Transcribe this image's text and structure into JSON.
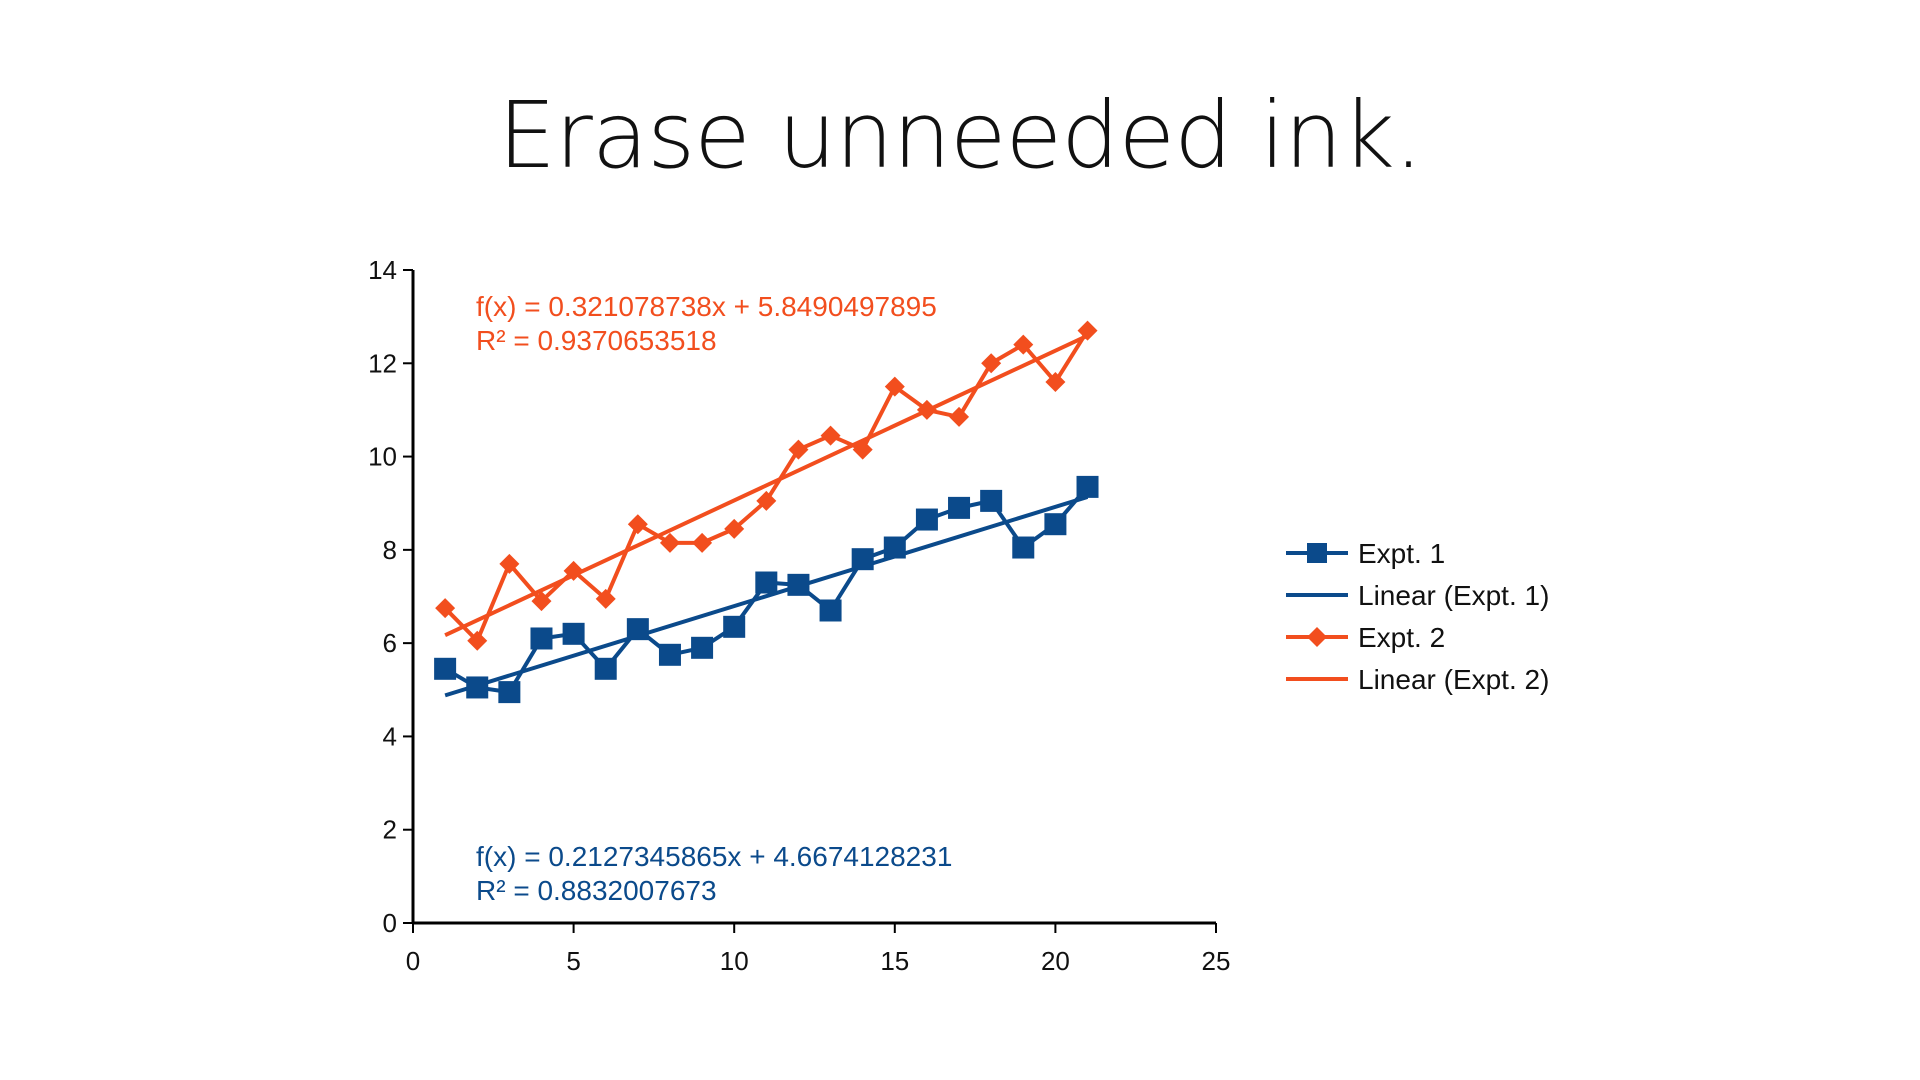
{
  "slide": {
    "title": "Erase unneeded ink."
  },
  "chart_data": {
    "type": "scatter",
    "title": "",
    "xlabel": "",
    "ylabel": "",
    "xlim": [
      0,
      25
    ],
    "ylim": [
      0,
      14
    ],
    "xticks": [
      0,
      5,
      10,
      15,
      20,
      25
    ],
    "yticks": [
      0,
      2,
      4,
      6,
      8,
      10,
      12,
      14
    ],
    "grid": false,
    "legend_position": "right",
    "series": [
      {
        "name": "Expt. 1",
        "color": "#0b4a8b",
        "marker": "square",
        "x": [
          1,
          2,
          3,
          4,
          5,
          6,
          7,
          8,
          9,
          10,
          11,
          12,
          13,
          14,
          15,
          16,
          17,
          18,
          19,
          20,
          21
        ],
        "y": [
          5.45,
          5.05,
          4.95,
          6.1,
          6.2,
          5.45,
          6.3,
          5.75,
          5.9,
          6.35,
          7.3,
          7.25,
          6.7,
          7.8,
          8.05,
          8.65,
          8.9,
          9.05,
          8.05,
          8.55,
          9.35
        ],
        "trendline": {
          "name": "Linear (Expt. 1)",
          "slope": 0.2127345865,
          "intercept": 4.6674128231,
          "equation": "f(x) = 0.2127345865x + 4.6674128231",
          "r_squared": "R² = 0.8832007673"
        }
      },
      {
        "name": "Expt. 2",
        "color": "#f24e1e",
        "marker": "diamond",
        "x": [
          1,
          2,
          3,
          4,
          5,
          6,
          7,
          8,
          9,
          10,
          11,
          12,
          13,
          14,
          15,
          16,
          17,
          18,
          19,
          20,
          21
        ],
        "y": [
          6.75,
          6.05,
          7.7,
          6.9,
          7.55,
          6.95,
          8.55,
          8.15,
          8.15,
          8.45,
          9.05,
          10.15,
          10.45,
          10.15,
          11.5,
          11.0,
          10.85,
          12.0,
          12.4,
          11.6,
          12.7
        ],
        "trendline": {
          "name": "Linear (Expt. 2)",
          "slope": 0.321078738,
          "intercept": 5.8490497895,
          "equation": "f(x) = 0.321078738x + 5.8490497895",
          "r_squared": "R² = 0.9370653518"
        }
      }
    ]
  }
}
